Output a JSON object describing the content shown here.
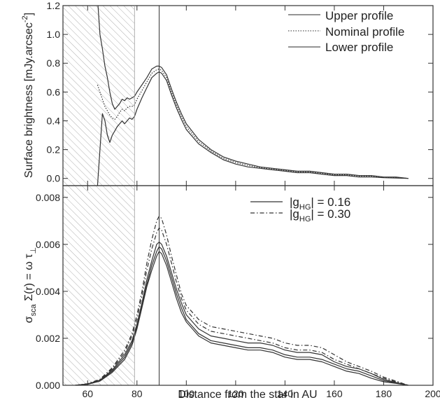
{
  "colors": {
    "ink": "#333333",
    "hatch": "#9a9a9a",
    "background": "#ffffff"
  },
  "chart_data": [
    {
      "type": "line",
      "panel": "top",
      "xlabel": "",
      "ylabel": "Surface brightness [mJy.arcsec",
      "ylabel_sup": "-2",
      "ylabel_close": "]",
      "xlim": [
        50,
        200
      ],
      "ylim": [
        -0.05,
        1.2
      ],
      "yticks": [
        0.0,
        0.2,
        0.4,
        0.6,
        0.8,
        1.0,
        1.2
      ],
      "ytick_labels": [
        "0.0",
        "0.2",
        "0.4",
        "0.6",
        "0.8",
        "1.0",
        "1.2"
      ],
      "hatched_region": [
        50,
        79
      ],
      "vertical_line_x": 89,
      "grid": false,
      "legend_position": "top-right",
      "x": [
        64,
        65,
        66,
        67,
        68,
        69,
        70,
        71,
        72,
        73,
        74,
        75,
        76,
        77,
        78,
        79,
        80,
        82,
        84,
        86,
        88,
        89,
        90,
        92,
        94,
        96,
        98,
        100,
        105,
        110,
        115,
        120,
        125,
        130,
        135,
        140,
        145,
        150,
        155,
        160,
        165,
        170,
        175,
        180,
        185,
        190
      ],
      "series": [
        {
          "name": "Upper profile",
          "dash": "solid",
          "values": [
            1.25,
            1.0,
            0.9,
            0.78,
            0.7,
            0.6,
            0.52,
            0.48,
            0.5,
            0.52,
            0.55,
            0.54,
            0.56,
            0.55,
            0.56,
            0.57,
            0.6,
            0.65,
            0.7,
            0.76,
            0.78,
            0.78,
            0.77,
            0.72,
            0.62,
            0.53,
            0.45,
            0.38,
            0.27,
            0.2,
            0.15,
            0.12,
            0.1,
            0.08,
            0.07,
            0.06,
            0.05,
            0.05,
            0.04,
            0.03,
            0.03,
            0.02,
            0.02,
            0.01,
            0.01,
            0.0
          ]
        },
        {
          "name": "Nominal profile",
          "dash": "dotted",
          "values": [
            0.65,
            0.6,
            0.55,
            0.5,
            0.47,
            0.44,
            0.42,
            0.41,
            0.43,
            0.46,
            0.48,
            0.47,
            0.49,
            0.5,
            0.5,
            0.51,
            0.55,
            0.61,
            0.67,
            0.73,
            0.755,
            0.76,
            0.75,
            0.7,
            0.6,
            0.51,
            0.43,
            0.36,
            0.255,
            0.19,
            0.14,
            0.11,
            0.09,
            0.075,
            0.065,
            0.055,
            0.045,
            0.045,
            0.035,
            0.025,
            0.025,
            0.015,
            0.015,
            0.008,
            0.006,
            0.0
          ]
        },
        {
          "name": "Lower profile",
          "dash": "solid",
          "values": [
            -0.05,
            0.2,
            0.45,
            0.4,
            0.3,
            0.25,
            0.3,
            0.33,
            0.36,
            0.38,
            0.4,
            0.38,
            0.4,
            0.42,
            0.41,
            0.43,
            0.48,
            0.56,
            0.63,
            0.7,
            0.73,
            0.74,
            0.73,
            0.68,
            0.58,
            0.49,
            0.41,
            0.34,
            0.24,
            0.18,
            0.13,
            0.1,
            0.08,
            0.07,
            0.06,
            0.05,
            0.04,
            0.04,
            0.03,
            0.02,
            0.02,
            0.01,
            0.01,
            0.005,
            0.003,
            0.0
          ]
        }
      ]
    },
    {
      "type": "line",
      "panel": "bottom",
      "xlabel": "Distance from the star in AU",
      "ylabel": "σ",
      "ylabel_sub": "sca",
      "ylabel_rest": " Σ(r) = ω τ",
      "ylabel_sub2": "⊥",
      "xlim": [
        50,
        200
      ],
      "ylim": [
        0.0,
        0.0085
      ],
      "xticks": [
        60,
        80,
        100,
        120,
        140,
        160,
        180,
        200
      ],
      "xtick_labels": [
        "60",
        "80",
        "100",
        "120",
        "140",
        "160",
        "180",
        "200"
      ],
      "yticks": [
        0.0,
        0.002,
        0.004,
        0.006,
        0.008
      ],
      "ytick_labels": [
        "0.000",
        "0.002",
        "0.004",
        "0.006",
        "0.008"
      ],
      "hatched_region": [
        50,
        79
      ],
      "vertical_line_x": 89,
      "grid": false,
      "legend_position": "top-right",
      "legend": [
        {
          "dash": "solid",
          "pre": "|g",
          "sub": "HG",
          "post": "| = 0.16"
        },
        {
          "dash": "dashdot",
          "pre": "|g",
          "sub": "HG",
          "post": "| = 0.30"
        }
      ],
      "x": [
        55,
        60,
        65,
        70,
        75,
        78,
        80,
        82,
        84,
        86,
        88,
        89,
        90,
        92,
        94,
        96,
        98,
        100,
        105,
        110,
        115,
        120,
        125,
        130,
        135,
        140,
        145,
        150,
        155,
        160,
        165,
        170,
        175,
        180,
        185,
        190
      ],
      "series": [
        {
          "name": "",
          "dash": "solid",
          "values": [
            0.0,
            5e-05,
            0.0002,
            0.0006,
            0.0012,
            0.0018,
            0.0025,
            0.0034,
            0.0043,
            0.0051,
            0.0057,
            0.0059,
            0.0058,
            0.0053,
            0.0046,
            0.0039,
            0.0033,
            0.0028,
            0.0022,
            0.0019,
            0.0018,
            0.0017,
            0.0016,
            0.0016,
            0.0015,
            0.0013,
            0.0012,
            0.0012,
            0.0011,
            0.0009,
            0.0007,
            0.0006,
            0.0004,
            0.0002,
            0.0001,
            0.0
          ]
        },
        {
          "name": "",
          "dash": "solid",
          "values": [
            0.0,
            4e-05,
            0.00018,
            0.00055,
            0.0011,
            0.0017,
            0.0024,
            0.0033,
            0.0042,
            0.0049,
            0.0055,
            0.0057,
            0.0056,
            0.0051,
            0.0044,
            0.0037,
            0.0031,
            0.0027,
            0.0021,
            0.0018,
            0.0017,
            0.0016,
            0.0015,
            0.0015,
            0.0014,
            0.0012,
            0.0011,
            0.0011,
            0.001,
            0.0008,
            0.0006,
            0.0005,
            0.0003,
            0.00015,
            8e-05,
            0.0
          ]
        },
        {
          "name": "",
          "dash": "solid",
          "values": [
            0.0,
            6e-05,
            0.00022,
            0.00065,
            0.0013,
            0.0019,
            0.0026,
            0.0035,
            0.0045,
            0.0053,
            0.006,
            0.0061,
            0.006,
            0.0055,
            0.0048,
            0.0041,
            0.0035,
            0.003,
            0.0024,
            0.0021,
            0.002,
            0.0019,
            0.0018,
            0.0018,
            0.0017,
            0.0015,
            0.0014,
            0.0014,
            0.0013,
            0.001,
            0.0008,
            0.0007,
            0.0005,
            0.00025,
            0.00012,
            0.0
          ]
        },
        {
          "name": "",
          "dash": "dashdot",
          "values": [
            0.0,
            6e-05,
            0.00024,
            0.0007,
            0.0014,
            0.0021,
            0.0028,
            0.0038,
            0.0049,
            0.0058,
            0.0065,
            0.0067,
            0.0066,
            0.006,
            0.0052,
            0.0044,
            0.0037,
            0.0032,
            0.0026,
            0.0023,
            0.0022,
            0.0021,
            0.002,
            0.0019,
            0.0018,
            0.0016,
            0.0015,
            0.0015,
            0.0014,
            0.0011,
            0.0009,
            0.0007,
            0.0005,
            0.0003,
            0.00015,
            0.0
          ]
        },
        {
          "name": "",
          "dash": "dashdot",
          "values": [
            0.0,
            7e-05,
            0.00026,
            0.00075,
            0.0015,
            0.0022,
            0.003,
            0.004,
            0.0052,
            0.0062,
            0.007,
            0.0072,
            0.0071,
            0.0064,
            0.0055,
            0.0047,
            0.0039,
            0.0034,
            0.0028,
            0.0025,
            0.0024,
            0.0023,
            0.0022,
            0.0021,
            0.002,
            0.0018,
            0.0017,
            0.0017,
            0.0016,
            0.0013,
            0.001,
            0.0008,
            0.0006,
            0.00035,
            0.00018,
            0.0
          ]
        }
      ]
    }
  ]
}
